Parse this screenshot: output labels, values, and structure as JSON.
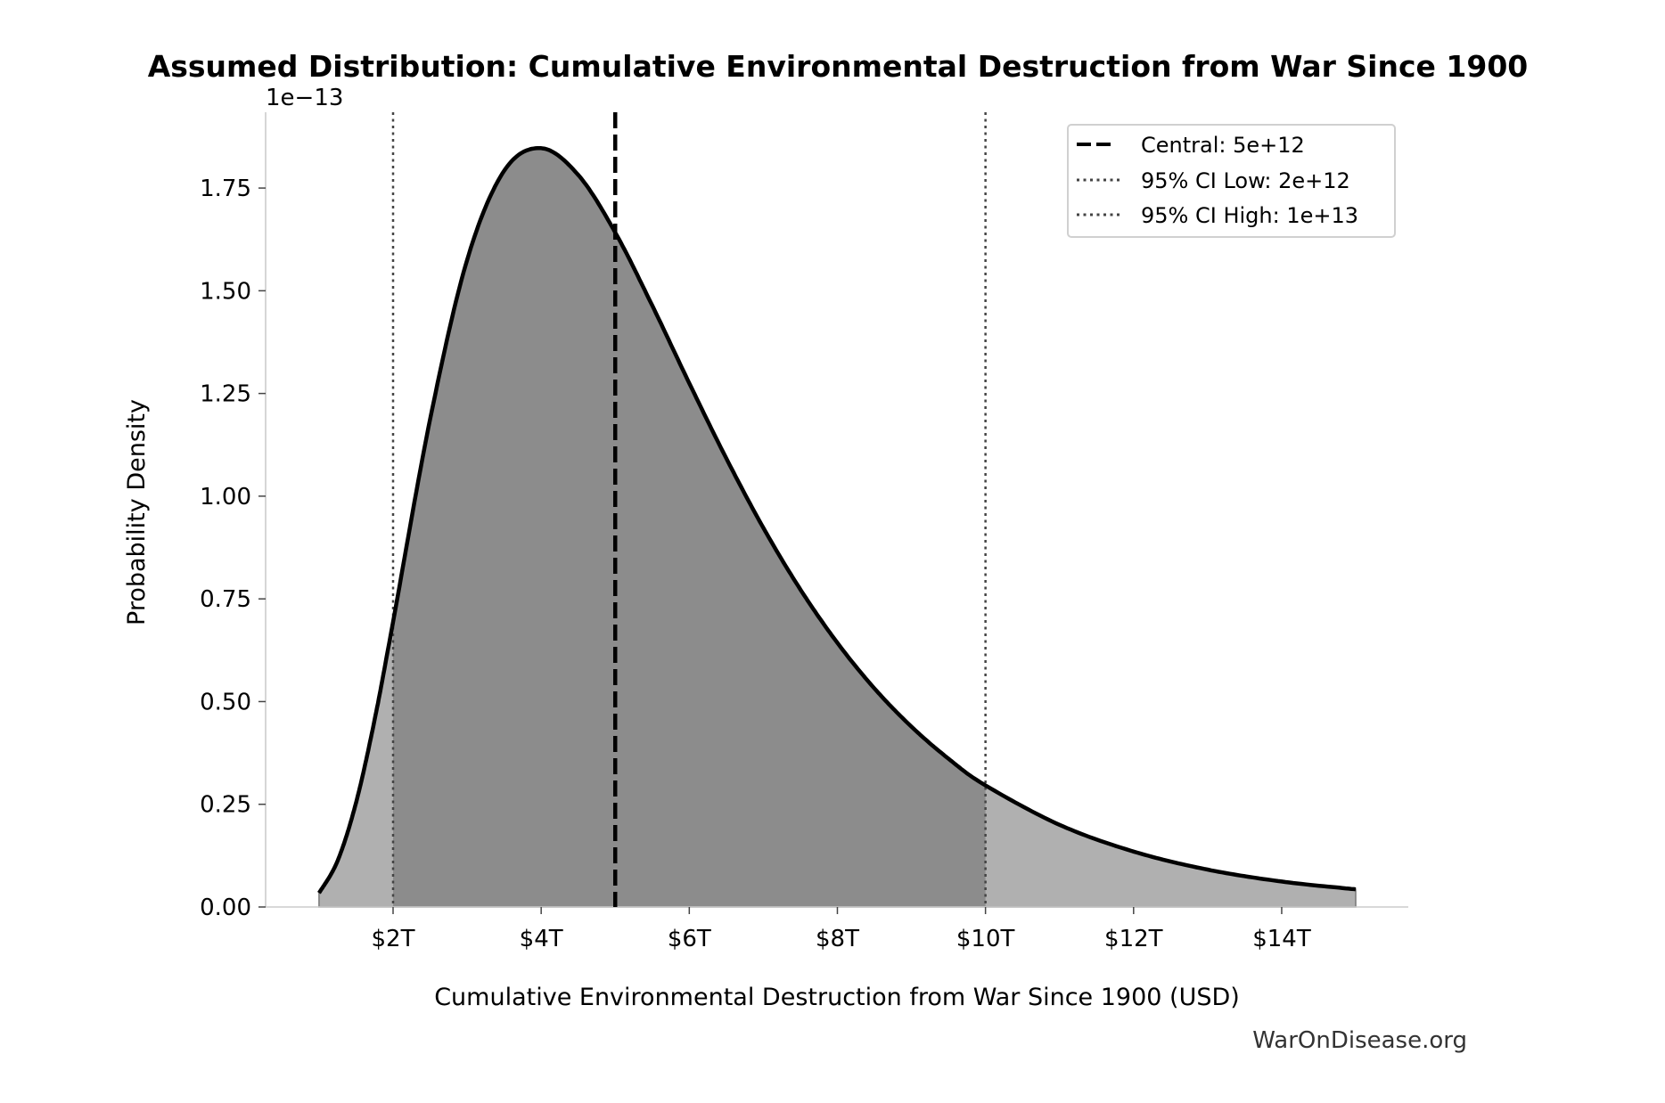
{
  "chart_data": {
    "type": "area",
    "title": "Assumed Distribution: Cumulative Environmental Destruction from War Since 1900",
    "xlabel": "Cumulative Environmental Destruction from War Since 1900 (USD)",
    "ylabel": "Probability Density",
    "y_offset_label": "1e−13",
    "x_unit": "trillion USD",
    "y_unit": "1e-13",
    "xlim": [
      0.3,
      15.7
    ],
    "ylim": [
      0,
      1.93
    ],
    "x_ticks": [
      2,
      4,
      6,
      8,
      10,
      12,
      14
    ],
    "x_tick_labels": [
      "$2T",
      "$4T",
      "$6T",
      "$8T",
      "$10T",
      "$12T",
      "$14T"
    ],
    "y_ticks": [
      0,
      0.25,
      0.5,
      0.75,
      1.0,
      1.25,
      1.5,
      1.75
    ],
    "y_tick_labels": [
      "0.00",
      "0.25",
      "0.50",
      "0.75",
      "1.00",
      "1.25",
      "1.50",
      "1.75"
    ],
    "grid": false,
    "series": {
      "x": [
        1,
        1.25,
        1.5,
        1.75,
        2,
        2.5,
        3,
        3.5,
        4,
        4.5,
        5,
        5.5,
        6,
        6.5,
        7,
        7.5,
        8,
        8.5,
        9,
        9.5,
        10,
        11,
        12,
        13,
        14,
        15
      ],
      "y": [
        0.034,
        0.112,
        0.254,
        0.455,
        0.694,
        1.187,
        1.575,
        1.792,
        1.847,
        1.782,
        1.642,
        1.464,
        1.275,
        1.092,
        0.923,
        0.773,
        0.643,
        0.532,
        0.439,
        0.361,
        0.296,
        0.2,
        0.135,
        0.091,
        0.062,
        0.043
      ]
    },
    "shaded_ci": [
      2,
      10
    ],
    "vlines": [
      {
        "name": "Central: 5e+12",
        "x": 5,
        "style": "dashed",
        "color": "#000000"
      },
      {
        "name": "95% CI Low: 2e+12",
        "x": 2,
        "style": "dotted",
        "color": "#444444"
      },
      {
        "name": "95% CI High: 1e+13",
        "x": 10,
        "style": "dotted",
        "color": "#444444"
      }
    ],
    "legend_position": "top-right",
    "colors": {
      "curve": "#000000",
      "fill_outer": "#b0b0b0",
      "fill_ci": "#8c8c8c",
      "spine": "#cccccc"
    }
  },
  "watermark": "WarOnDisease.org"
}
